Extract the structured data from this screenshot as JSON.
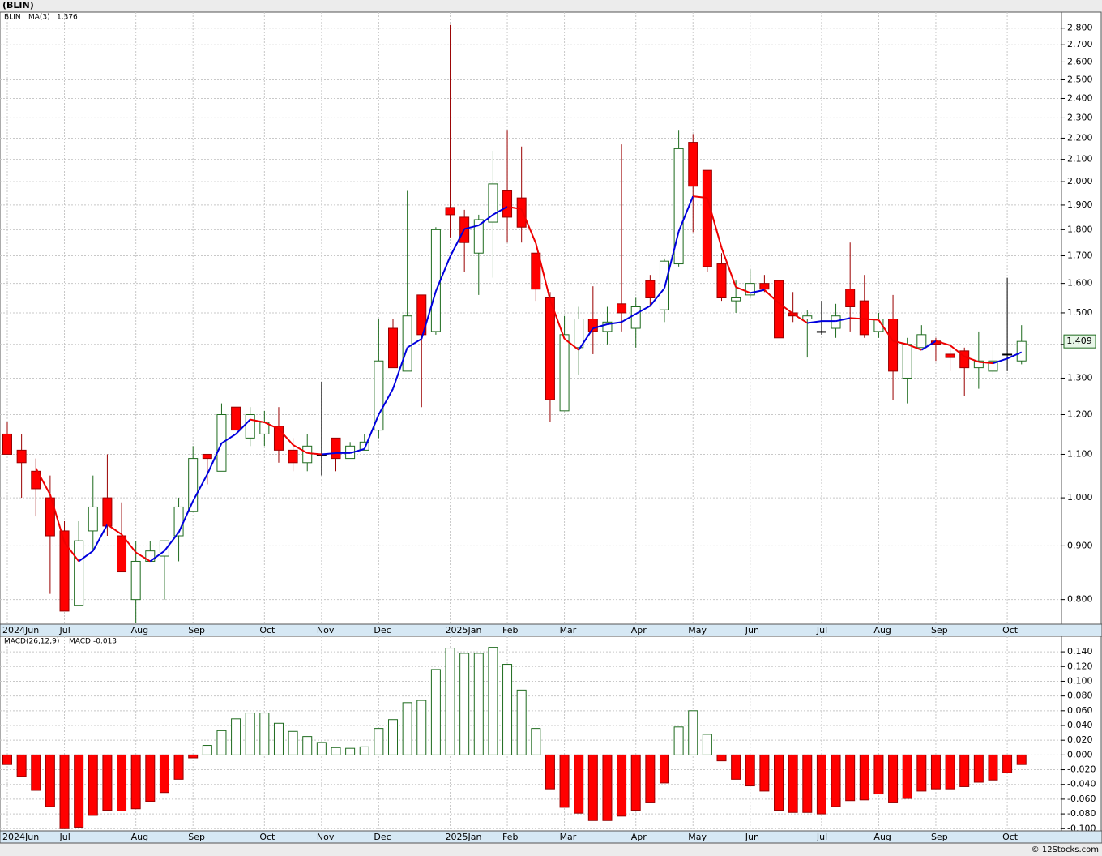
{
  "chart_data": [
    {
      "type": "candlestick",
      "title": "(BLIN)",
      "symbol": "BLIN",
      "log": true,
      "grid": true,
      "colors": {
        "up": "#1e6b1e",
        "down": "#ff0000",
        "down_edge": "#9a0000"
      },
      "categories": [
        "2024Jun",
        null,
        null,
        null,
        "Jul",
        null,
        null,
        null,
        null,
        "Aug",
        null,
        null,
        null,
        "Sep",
        null,
        null,
        null,
        null,
        "Oct",
        null,
        null,
        null,
        "Nov",
        null,
        null,
        null,
        "Dec",
        null,
        null,
        null,
        null,
        "2025Jan",
        null,
        null,
        null,
        "Feb",
        null,
        null,
        null,
        "Mar",
        null,
        null,
        null,
        null,
        "Apr",
        null,
        null,
        null,
        "May",
        null,
        null,
        null,
        "Jun",
        null,
        null,
        null,
        null,
        "Jul",
        null,
        null,
        null,
        "Aug",
        null,
        null,
        null,
        "Sep",
        null,
        null,
        null,
        null,
        "Oct",
        null
      ],
      "open": [
        1.15,
        1.11,
        1.06,
        1.0,
        0.93,
        0.79,
        0.93,
        1.0,
        0.92,
        0.8,
        0.87,
        0.88,
        0.92,
        0.97,
        1.1,
        1.06,
        1.22,
        1.14,
        1.15,
        1.17,
        1.11,
        1.08,
        1.1,
        1.14,
        1.09,
        1.11,
        1.16,
        1.45,
        1.32,
        1.56,
        1.44,
        1.89,
        1.85,
        1.71,
        1.83,
        1.96,
        1.93,
        1.71,
        1.55,
        1.21,
        1.39,
        1.48,
        1.44,
        1.53,
        1.45,
        1.61,
        1.51,
        1.67,
        2.18,
        2.05,
        1.67,
        1.54,
        1.56,
        1.6,
        1.61,
        1.5,
        1.48,
        1.44,
        1.45,
        1.58,
        1.54,
        1.44,
        1.48,
        1.3,
        1.39,
        1.41,
        1.37,
        1.38,
        1.33,
        1.32,
        1.37,
        1.35
      ],
      "high": [
        1.18,
        1.15,
        1.09,
        1.05,
        0.95,
        0.95,
        1.05,
        1.1,
        0.99,
        0.91,
        0.91,
        0.91,
        1.0,
        1.12,
        1.1,
        1.23,
        1.22,
        1.22,
        1.21,
        1.22,
        1.14,
        1.15,
        1.29,
        1.14,
        1.13,
        1.15,
        1.48,
        1.48,
        1.96,
        1.56,
        1.81,
        2.82,
        1.88,
        1.86,
        2.14,
        2.24,
        2.16,
        1.71,
        1.57,
        1.49,
        1.52,
        1.59,
        1.52,
        2.17,
        1.55,
        1.63,
        1.69,
        2.24,
        2.22,
        2.05,
        1.71,
        1.61,
        1.65,
        1.63,
        1.61,
        1.57,
        1.51,
        1.54,
        1.53,
        1.75,
        1.63,
        1.5,
        1.56,
        1.42,
        1.46,
        1.42,
        1.4,
        1.39,
        1.44,
        1.4,
        1.62,
        1.46
      ],
      "low": [
        1.1,
        1.0,
        0.96,
        0.81,
        0.78,
        0.79,
        0.89,
        0.92,
        0.85,
        0.76,
        0.87,
        0.8,
        0.87,
        0.97,
        1.03,
        1.06,
        1.16,
        1.12,
        1.12,
        1.08,
        1.06,
        1.06,
        1.05,
        1.06,
        1.09,
        1.11,
        1.14,
        1.33,
        1.32,
        1.22,
        1.43,
        1.77,
        1.64,
        1.56,
        1.62,
        1.75,
        1.75,
        1.54,
        1.18,
        1.21,
        1.31,
        1.37,
        1.4,
        1.44,
        1.39,
        1.52,
        1.47,
        1.66,
        1.79,
        1.64,
        1.54,
        1.5,
        1.55,
        1.57,
        1.42,
        1.47,
        1.36,
        1.43,
        1.42,
        1.44,
        1.42,
        1.42,
        1.24,
        1.23,
        1.39,
        1.35,
        1.32,
        1.25,
        1.27,
        1.31,
        1.32,
        1.34
      ],
      "close": [
        1.1,
        1.08,
        1.02,
        0.92,
        0.78,
        0.91,
        0.98,
        0.94,
        0.85,
        0.87,
        0.89,
        0.91,
        0.98,
        1.09,
        1.09,
        1.2,
        1.16,
        1.2,
        1.18,
        1.11,
        1.08,
        1.12,
        1.1,
        1.09,
        1.12,
        1.13,
        1.35,
        1.33,
        1.49,
        1.43,
        1.8,
        1.86,
        1.75,
        1.84,
        1.99,
        1.85,
        1.81,
        1.58,
        1.24,
        1.43,
        1.48,
        1.44,
        1.47,
        1.5,
        1.52,
        1.55,
        1.68,
        2.15,
        1.98,
        1.66,
        1.55,
        1.55,
        1.6,
        1.58,
        1.42,
        1.49,
        1.49,
        1.44,
        1.49,
        1.52,
        1.43,
        1.48,
        1.32,
        1.4,
        1.43,
        1.4,
        1.36,
        1.33,
        1.35,
        1.35,
        1.37,
        1.409
      ],
      "ma": {
        "name": "MA(3)",
        "up_color": "#0000dd",
        "down_color": "#ee0000",
        "values": [
          null,
          null,
          1.067,
          1.007,
          0.907,
          0.87,
          0.89,
          0.943,
          0.923,
          0.887,
          0.87,
          0.89,
          0.927,
          0.993,
          1.053,
          1.127,
          1.15,
          1.187,
          1.18,
          1.163,
          1.123,
          1.103,
          1.1,
          1.103,
          1.103,
          1.113,
          1.2,
          1.27,
          1.39,
          1.417,
          1.573,
          1.697,
          1.803,
          1.817,
          1.86,
          1.893,
          1.883,
          1.747,
          1.543,
          1.417,
          1.383,
          1.45,
          1.463,
          1.47,
          1.497,
          1.523,
          1.583,
          1.793,
          1.937,
          1.93,
          1.73,
          1.587,
          1.567,
          1.577,
          1.533,
          1.497,
          1.467,
          1.473,
          1.473,
          1.483,
          1.48,
          1.477,
          1.41,
          1.4,
          1.383,
          1.41,
          1.397,
          1.363,
          1.347,
          1.343,
          1.357,
          1.376
        ]
      },
      "last_price": 1.409,
      "ylim": [
        0.758,
        2.9
      ],
      "yticks": [
        {
          "value": 0.8,
          "label": "0.800"
        },
        {
          "value": 0.9,
          "label": "0.900"
        },
        {
          "value": 1.0,
          "label": "1.000"
        },
        {
          "value": 1.1,
          "label": "1.100"
        },
        {
          "value": 1.2,
          "label": "1.200"
        },
        {
          "value": 1.3,
          "label": "1.300"
        },
        {
          "value": 1.4,
          "label": "1.400"
        },
        {
          "value": 1.5,
          "label": "1.500"
        },
        {
          "value": 1.6,
          "label": "1.600"
        },
        {
          "value": 1.7,
          "label": "1.700"
        },
        {
          "value": 1.8,
          "label": "1.800"
        },
        {
          "value": 1.9,
          "label": "1.900"
        },
        {
          "value": 2.0,
          "label": "2.000"
        },
        {
          "value": 2.1,
          "label": "2.100"
        },
        {
          "value": 2.2,
          "label": "2.200"
        },
        {
          "value": 2.3,
          "label": "2.300"
        },
        {
          "value": 2.4,
          "label": "2.400"
        },
        {
          "value": 2.5,
          "label": "2.500"
        },
        {
          "value": 2.6,
          "label": "2.600"
        },
        {
          "value": 2.7,
          "label": "2.700"
        },
        {
          "value": 2.8,
          "label": "2.800"
        }
      ]
    },
    {
      "type": "bar",
      "title": "MACD(26,12,9)",
      "status": "MACD:-0.013",
      "grid": true,
      "colors": {
        "up": "#1e6b1e",
        "down": "#ff0000",
        "down_edge": "#9a0000"
      },
      "categories": [
        "2024Jun",
        null,
        null,
        null,
        "Jul",
        null,
        null,
        null,
        null,
        "Aug",
        null,
        null,
        null,
        "Sep",
        null,
        null,
        null,
        null,
        "Oct",
        null,
        null,
        null,
        "Nov",
        null,
        null,
        null,
        "Dec",
        null,
        null,
        null,
        null,
        "2025Jan",
        null,
        null,
        null,
        "Feb",
        null,
        null,
        null,
        "Mar",
        null,
        null,
        null,
        null,
        "Apr",
        null,
        null,
        null,
        "May",
        null,
        null,
        null,
        "Jun",
        null,
        null,
        null,
        null,
        "Jul",
        null,
        null,
        null,
        "Aug",
        null,
        null,
        null,
        "Sep",
        null,
        null,
        null,
        null,
        "Oct",
        null
      ],
      "values": [
        -0.013,
        -0.029,
        -0.048,
        -0.07,
        -0.1,
        -0.098,
        -0.082,
        -0.075,
        -0.076,
        -0.073,
        -0.063,
        -0.051,
        -0.033,
        -0.004,
        0.013,
        0.033,
        0.049,
        0.057,
        0.057,
        0.043,
        0.032,
        0.025,
        0.017,
        0.01,
        0.009,
        0.011,
        0.036,
        0.048,
        0.071,
        0.074,
        0.116,
        0.145,
        0.138,
        0.138,
        0.146,
        0.123,
        0.088,
        0.036,
        -0.046,
        -0.071,
        -0.079,
        -0.089,
        -0.089,
        -0.083,
        -0.075,
        -0.065,
        -0.038,
        0.038,
        0.06,
        0.028,
        -0.008,
        -0.033,
        -0.042,
        -0.049,
        -0.075,
        -0.078,
        -0.078,
        -0.08,
        -0.07,
        -0.062,
        -0.061,
        -0.053,
        -0.065,
        -0.059,
        -0.049,
        -0.046,
        -0.046,
        -0.043,
        -0.037,
        -0.034,
        -0.024,
        -0.013
      ],
      "ylim": [
        -0.103,
        0.161
      ],
      "yticks": [
        {
          "value": -0.1,
          "label": "-0.100"
        },
        {
          "value": -0.08,
          "label": "-0.080"
        },
        {
          "value": -0.06,
          "label": "-0.060"
        },
        {
          "value": -0.04,
          "label": "-0.040"
        },
        {
          "value": -0.02,
          "label": "-0.020"
        },
        {
          "value": 0,
          "label": "0.000"
        },
        {
          "value": 0.02,
          "label": "0.020"
        },
        {
          "value": 0.04,
          "label": "0.040"
        },
        {
          "value": 0.06,
          "label": "0.060"
        },
        {
          "value": 0.08,
          "label": "0.080"
        },
        {
          "value": 0.1,
          "label": "0.100"
        },
        {
          "value": 0.12,
          "label": "0.120"
        },
        {
          "value": 0.14,
          "label": "0.140"
        }
      ]
    }
  ],
  "footer": "© 12Stocks.com"
}
